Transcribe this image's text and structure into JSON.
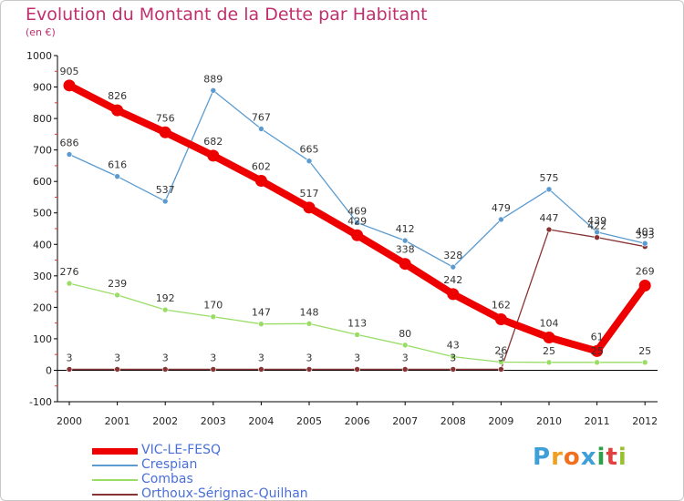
{
  "header": {
    "title": "Evolution du Montant de la Dette par Habitant",
    "subtitle": "(en €)"
  },
  "logo": {
    "text": "Proxiti",
    "letters": [
      "P",
      "r",
      "o",
      "x",
      "i",
      "t",
      "i"
    ],
    "colors": [
      "#3f9fd8",
      "#f0a020",
      "#f07020",
      "#3f9fd8",
      "#2fa04a",
      "#e04040",
      "#9ac030"
    ]
  },
  "chart_data": {
    "type": "line",
    "x": [
      "2000",
      "2001",
      "2002",
      "2003",
      "2004",
      "2005",
      "2006",
      "2007",
      "2008",
      "2009",
      "2010",
      "2011",
      "2012"
    ],
    "ylim": [
      -100,
      1000
    ],
    "yticks": [
      "-100",
      "0",
      "100",
      "200",
      "300",
      "400",
      "500",
      "600",
      "700",
      "800",
      "900",
      "1000"
    ],
    "grid": false,
    "legend_position": "bottom-left",
    "series": [
      {
        "name": "VIC-LE-FESQ",
        "color": "#ee0000",
        "values": [
          905,
          826,
          756,
          682,
          602,
          517,
          429,
          338,
          242,
          162,
          104,
          61,
          269
        ],
        "labels": [
          "905",
          "826",
          "756",
          "682",
          "602",
          "517",
          "429",
          "338",
          "242",
          "162",
          "104",
          "61",
          "269"
        ]
      },
      {
        "name": "Crespian",
        "color": "#5b9bd0",
        "values": [
          686,
          616,
          537,
          889,
          767,
          665,
          469,
          412,
          328,
          479,
          575,
          439,
          403
        ],
        "labels": [
          "686",
          "616",
          "537",
          "889",
          "767",
          "665",
          "469",
          "412",
          "328",
          "479",
          "575",
          "439",
          "403"
        ]
      },
      {
        "name": "Combas",
        "color": "#99dd66",
        "values": [
          276,
          239,
          192,
          170,
          147,
          148,
          113,
          80,
          43,
          26,
          25,
          25,
          25
        ],
        "labels": [
          "276",
          "239",
          "192",
          "170",
          "147",
          "148",
          "113",
          "80",
          "43",
          "26",
          "25",
          "25",
          "25"
        ]
      },
      {
        "name": "Orthoux-Sérignac-Quilhan",
        "color": "#883333",
        "values": [
          3,
          3,
          3,
          3,
          3,
          3,
          3,
          3,
          3,
          3,
          447,
          422,
          393
        ],
        "labels": [
          "3",
          "3",
          "3",
          "3",
          "3",
          "3",
          "3",
          "3",
          "3",
          "3",
          "447",
          "422",
          "393"
        ]
      }
    ]
  }
}
